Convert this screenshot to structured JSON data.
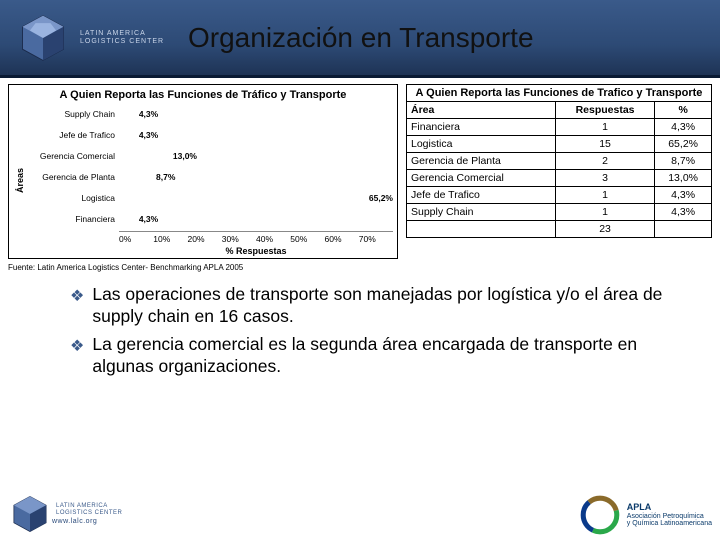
{
  "header": {
    "title": "Organización en Transporte",
    "org_line1": "LATIN AMERICA",
    "org_line2": "LOGISTICS CENTER"
  },
  "chart": {
    "title": "A Quien Reporta las Funciones de Tráfico y Transporte",
    "yaxis": "Áreas",
    "xaxis": "% Respuestas",
    "xmax": 70,
    "xtick_step": 10,
    "bar_color": "#000000",
    "bars": [
      {
        "label": "Supply Chain",
        "value": 4.3,
        "display": "4,3%"
      },
      {
        "label": "Jefe de Trafico",
        "value": 4.3,
        "display": "4,3%"
      },
      {
        "label": "Gerencia Comercial",
        "value": 13.0,
        "display": "13,0%"
      },
      {
        "label": "Gerencia de Planta",
        "value": 8.7,
        "display": "8,7%"
      },
      {
        "label": "Logistica",
        "value": 65.2,
        "display": "65,2%"
      },
      {
        "label": "Financiera",
        "value": 4.3,
        "display": "4,3%"
      }
    ],
    "xticks": [
      "0%",
      "10%",
      "20%",
      "30%",
      "40%",
      "50%",
      "60%",
      "70%"
    ]
  },
  "table": {
    "title": "A Quien Reporta las Funciones de Trafico y Transporte",
    "columns": [
      "Área",
      "Respuestas",
      "%"
    ],
    "rows": [
      [
        "Financiera",
        "1",
        "4,3%"
      ],
      [
        "Logistica",
        "15",
        "65,2%"
      ],
      [
        "Gerencia de Planta",
        "2",
        "8,7%"
      ],
      [
        "Gerencia Comercial",
        "3",
        "13,0%"
      ],
      [
        "Jefe de Trafico",
        "1",
        "4,3%"
      ],
      [
        "Supply Chain",
        "1",
        "4,3%"
      ],
      [
        "",
        "23",
        ""
      ]
    ]
  },
  "source": "Fuente: Latin America Logistics Center- Benchmarking APLA 2005",
  "bullets": [
    "Las operaciones de transporte son manejadas por logística y/o el área de supply chain en 16 casos.",
    "La gerencia comercial es la segunda área encargada de transporte en algunas organizaciones."
  ],
  "footer": {
    "www": "www.lalc.org",
    "apla_name": "APLA",
    "apla_sub1": "Asociación Petroquímica",
    "apla_sub2": "y Química Latinoamericana"
  }
}
